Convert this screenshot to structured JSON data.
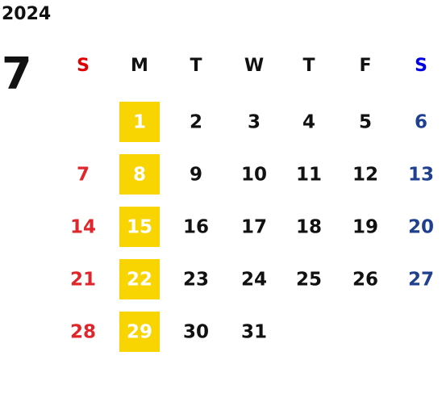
{
  "year": "2024",
  "month": "7",
  "weekdays": [
    "S",
    "M",
    "T",
    "W",
    "T",
    "F",
    "S"
  ],
  "weeks": [
    [
      null,
      1,
      2,
      3,
      4,
      5,
      6
    ],
    [
      7,
      8,
      9,
      10,
      11,
      12,
      13
    ],
    [
      14,
      15,
      16,
      17,
      18,
      19,
      20
    ],
    [
      21,
      22,
      23,
      24,
      25,
      26,
      27
    ],
    [
      28,
      29,
      30,
      31,
      null,
      null,
      null
    ]
  ]
}
